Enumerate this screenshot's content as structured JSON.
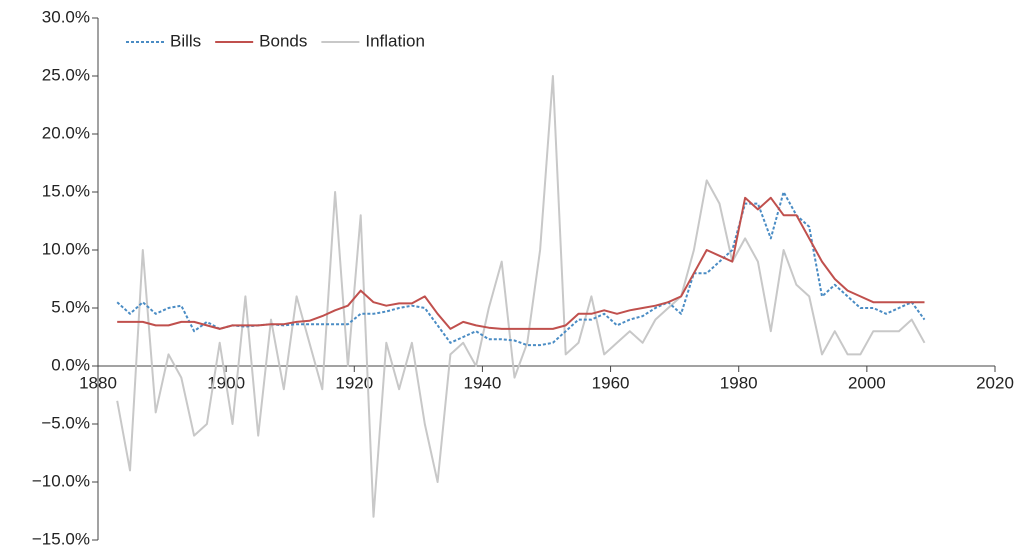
{
  "chart_data": {
    "type": "line",
    "x": [
      1883,
      1885,
      1887,
      1889,
      1891,
      1893,
      1895,
      1897,
      1899,
      1901,
      1903,
      1905,
      1907,
      1909,
      1911,
      1913,
      1915,
      1917,
      1919,
      1921,
      1923,
      1925,
      1927,
      1929,
      1931,
      1933,
      1935,
      1937,
      1939,
      1941,
      1943,
      1945,
      1947,
      1949,
      1951,
      1953,
      1955,
      1957,
      1959,
      1961,
      1963,
      1965,
      1967,
      1969,
      1971,
      1973,
      1975,
      1977,
      1979,
      1981,
      1983,
      1985,
      1987,
      1989,
      1991,
      1993,
      1995,
      1997,
      1999,
      2001,
      2003,
      2005,
      2007,
      2009
    ],
    "series": [
      {
        "name": "Bills",
        "color": "#4a8cc4",
        "dashed": true,
        "values": [
          5.5,
          4.5,
          5.5,
          4.5,
          5,
          5.2,
          3,
          3.8,
          3.2,
          3.5,
          3.4,
          3.5,
          3.6,
          3.5,
          3.6,
          3.6,
          3.6,
          3.6,
          3.6,
          4.5,
          4.5,
          4.7,
          5,
          5.2,
          5,
          3.5,
          2,
          2.5,
          3,
          2.3,
          2.3,
          2.2,
          1.8,
          1.8,
          2,
          3,
          4,
          4,
          4.5,
          3.5,
          4,
          4.3,
          5,
          5.5,
          4.5,
          8,
          8,
          9,
          10,
          14,
          14,
          11,
          15,
          13,
          12,
          6,
          7,
          6,
          5,
          5,
          4.5,
          5,
          5.5,
          4
        ]
      },
      {
        "name": "Bonds",
        "color": "#c0504d",
        "dashed": false,
        "values": [
          3.8,
          3.8,
          3.8,
          3.5,
          3.5,
          3.8,
          3.8,
          3.5,
          3.2,
          3.5,
          3.5,
          3.5,
          3.6,
          3.6,
          3.8,
          3.9,
          4.3,
          4.8,
          5.2,
          6.5,
          5.5,
          5.2,
          5.4,
          5.4,
          6,
          4.5,
          3.2,
          3.8,
          3.5,
          3.3,
          3.2,
          3.2,
          3.2,
          3.2,
          3.2,
          3.5,
          4.5,
          4.5,
          4.8,
          4.5,
          4.8,
          5,
          5.2,
          5.5,
          6,
          8,
          10,
          9.5,
          9,
          14.5,
          13.5,
          14.5,
          13,
          13,
          11,
          9,
          7.5,
          6.5,
          6,
          5.5,
          5.5,
          5.5,
          5.5,
          5.5
        ]
      },
      {
        "name": "Inflation",
        "color": "#c8c8c8",
        "dashed": false,
        "values": [
          -3,
          -9,
          10,
          -4,
          1,
          -1,
          -6,
          -5,
          2,
          -5,
          6,
          -6,
          4,
          -2,
          6,
          2,
          -2,
          15,
          0,
          13,
          -13,
          2,
          -2,
          2,
          -5,
          -10,
          1,
          2,
          0,
          5,
          9,
          -1,
          2,
          10,
          25,
          1,
          2,
          6,
          1,
          2,
          3,
          2,
          4,
          5,
          6,
          10,
          16,
          14,
          9,
          11,
          9,
          3,
          10,
          7,
          6,
          1,
          3,
          1,
          1,
          3,
          3,
          3,
          4,
          2
        ]
      }
    ],
    "xlim": [
      1880,
      2020
    ],
    "xticks": [
      1880,
      1900,
      1920,
      1940,
      1960,
      1980,
      2000,
      2020
    ],
    "ylim": [
      -15,
      30
    ],
    "yticks": [
      {
        "value": -15,
        "label": "−15.0%"
      },
      {
        "value": -10,
        "label": "−10.0%"
      },
      {
        "value": -5,
        "label": "−5.0%"
      },
      {
        "value": 0,
        "label": "0.0%"
      },
      {
        "value": 5,
        "label": "5.0%"
      },
      {
        "value": 10,
        "label": "10.0%"
      },
      {
        "value": 15,
        "label": "15.0%"
      },
      {
        "value": 20,
        "label": "20.0%"
      },
      {
        "value": 25,
        "label": "25.0%"
      },
      {
        "value": 30,
        "label": "30.0%"
      }
    ],
    "legend": "top-left"
  }
}
